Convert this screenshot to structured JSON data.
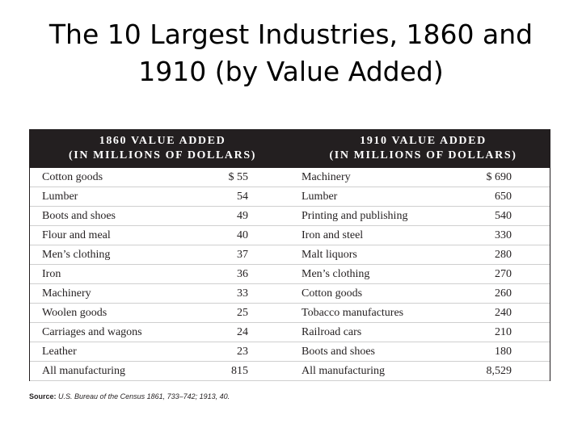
{
  "title": "The 10 Largest Industries, 1860 and 1910 (by Value Added)",
  "table": {
    "header_1860_line1": "1860 VALUE ADDED",
    "header_1860_line2": "(IN MILLIONS OF DOLLARS)",
    "header_1910_line1": "1910 VALUE ADDED",
    "header_1910_line2": "(IN MILLIONS OF DOLLARS)",
    "rows": [
      {
        "ind_1860": "Cotton goods",
        "val_1860": "$ 55",
        "ind_1910": "Machinery",
        "val_1910": "$ 690"
      },
      {
        "ind_1860": "Lumber",
        "val_1860": "54",
        "ind_1910": "Lumber",
        "val_1910": "650"
      },
      {
        "ind_1860": "Boots and shoes",
        "val_1860": "49",
        "ind_1910": "Printing and publishing",
        "val_1910": "540"
      },
      {
        "ind_1860": "Flour and meal",
        "val_1860": "40",
        "ind_1910": "Iron and steel",
        "val_1910": "330"
      },
      {
        "ind_1860": "Men’s clothing",
        "val_1860": "37",
        "ind_1910": "Malt liquors",
        "val_1910": "280"
      },
      {
        "ind_1860": "Iron",
        "val_1860": "36",
        "ind_1910": "Men’s clothing",
        "val_1910": "270"
      },
      {
        "ind_1860": "Machinery",
        "val_1860": "33",
        "ind_1910": "Cotton goods",
        "val_1910": "260"
      },
      {
        "ind_1860": "Woolen goods",
        "val_1860": "25",
        "ind_1910": "Tobacco manufactures",
        "val_1910": "240"
      },
      {
        "ind_1860": "Carriages and wagons",
        "val_1860": "24",
        "ind_1910": "Railroad cars",
        "val_1910": "210"
      },
      {
        "ind_1860": "Leather",
        "val_1860": "23",
        "ind_1910": "Boots and shoes",
        "val_1910": "180"
      },
      {
        "ind_1860": "All manufacturing",
        "val_1860": "815",
        "ind_1910": "All manufacturing",
        "val_1910": "8,529"
      }
    ]
  },
  "source": {
    "label": "Source:",
    "text": "U.S. Bureau of the Census 1861, 733–742; 1913, 40."
  },
  "colors": {
    "header_background": "#231f20",
    "header_text": "#ffffff",
    "row_divider": "#cfcfcf"
  }
}
